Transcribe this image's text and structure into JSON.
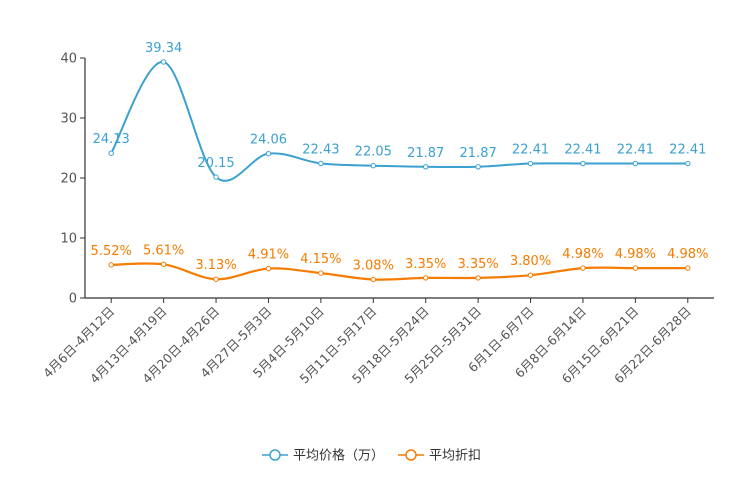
{
  "chart_data": {
    "type": "line",
    "title": "",
    "xlabel": "",
    "ylabel": "",
    "ylim": [
      0,
      40
    ],
    "yticks": [
      0,
      10,
      20,
      30,
      40
    ],
    "grid": false,
    "legend_position": "bottom",
    "categories": [
      "4月6日-4月12日",
      "4月13日-4月19日",
      "4月20日-4月26日",
      "4月27日-5月3日",
      "5月4日-5月10日",
      "5月11日-5月17日",
      "5月18日-5月24日",
      "5月25日-5月31日",
      "6月1日-6月7日",
      "6月8日-6月14日",
      "6月15日-6月21日",
      "6月22日-6月28日"
    ],
    "series": [
      {
        "name": "平均价格（万）",
        "color": "#3ba1d1",
        "values": [
          24.13,
          39.34,
          20.15,
          24.06,
          22.43,
          22.05,
          21.87,
          21.87,
          22.41,
          22.41,
          22.41,
          22.41
        ],
        "labels": [
          "24.13",
          "39.34",
          "20.15",
          "24.06",
          "22.43",
          "22.05",
          "21.87",
          "21.87",
          "22.41",
          "22.41",
          "22.41",
          "22.41"
        ]
      },
      {
        "name": "平均折扣",
        "color": "#f57c00",
        "values": [
          5.52,
          5.61,
          3.13,
          4.91,
          4.15,
          3.08,
          3.35,
          3.35,
          3.8,
          4.98,
          4.98,
          4.98
        ],
        "labels": [
          "5.52%",
          "5.61%",
          "3.13%",
          "4.91%",
          "4.15%",
          "3.08%",
          "3.35%",
          "3.35%",
          "3.80%",
          "4.98%",
          "4.98%",
          "4.98%"
        ]
      }
    ]
  }
}
